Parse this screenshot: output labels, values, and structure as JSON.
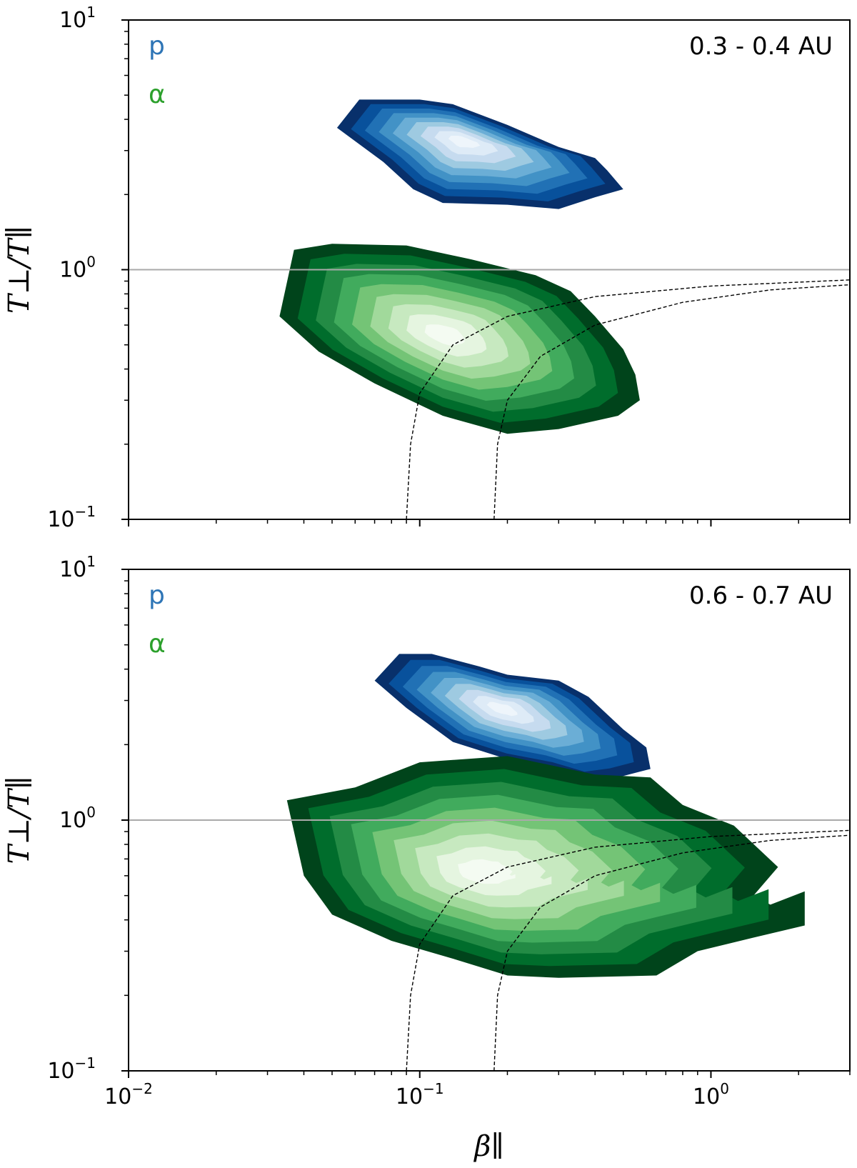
{
  "chart_data": [
    {
      "type": "contour",
      "annotation": "0.3 - 0.4 AU",
      "x_scale": "log",
      "y_scale": "log",
      "xlim": [
        0.01,
        3.0
      ],
      "ylim": [
        0.1,
        10
      ],
      "x_ticks": [
        {
          "mantissa": "10",
          "exp": "−2"
        },
        {
          "mantissa": "10",
          "exp": "−1"
        },
        {
          "mantissa": "10",
          "exp": "0"
        }
      ],
      "y_ticks": [
        {
          "mantissa": "10",
          "exp": "−1"
        },
        {
          "mantissa": "10",
          "exp": "0"
        },
        {
          "mantissa": "10",
          "exp": "1"
        }
      ],
      "xlabel": "",
      "ylabel": "T⊥/T∥",
      "legend": [
        {
          "label": "p",
          "color": "#2e75b6"
        },
        {
          "label": "α",
          "color": "#2ca02c"
        }
      ],
      "reference_line": {
        "y": 1.0,
        "color": "#aaaaaa"
      },
      "threshold_curves": [
        {
          "points": [
            [
              0.09,
              0.1
            ],
            [
              0.093,
              0.2
            ],
            [
              0.1,
              0.32
            ],
            [
              0.13,
              0.5
            ],
            [
              0.2,
              0.65
            ],
            [
              0.4,
              0.78
            ],
            [
              1.0,
              0.86
            ],
            [
              3.0,
              0.91
            ]
          ]
        },
        {
          "points": [
            [
              0.18,
              0.1
            ],
            [
              0.185,
              0.2
            ],
            [
              0.2,
              0.3
            ],
            [
              0.26,
              0.45
            ],
            [
              0.4,
              0.6
            ],
            [
              0.8,
              0.74
            ],
            [
              1.6,
              0.83
            ],
            [
              3.0,
              0.87
            ]
          ]
        }
      ],
      "series": [
        {
          "colormap": "Blues",
          "peak": [
            0.14,
            3.3
          ],
          "outer": [
            [
              0.052,
              3.7
            ],
            [
              0.062,
              4.8
            ],
            [
              0.1,
              4.8
            ],
            [
              0.13,
              4.6
            ],
            [
              0.2,
              3.8
            ],
            [
              0.3,
              3.1
            ],
            [
              0.4,
              2.8
            ],
            [
              0.44,
              2.5
            ],
            [
              0.5,
              2.1
            ],
            [
              0.4,
              1.95
            ],
            [
              0.3,
              1.75
            ],
            [
              0.2,
              1.82
            ],
            [
              0.12,
              1.85
            ],
            [
              0.095,
              2.1
            ],
            [
              0.075,
              2.7
            ]
          ]
        },
        {
          "colormap": "Greens",
          "peak": [
            0.12,
            0.55
          ],
          "outer": [
            [
              0.033,
              0.65
            ],
            [
              0.037,
              1.2
            ],
            [
              0.05,
              1.27
            ],
            [
              0.09,
              1.25
            ],
            [
              0.15,
              1.1
            ],
            [
              0.25,
              0.95
            ],
            [
              0.33,
              0.82
            ],
            [
              0.4,
              0.65
            ],
            [
              0.5,
              0.48
            ],
            [
              0.55,
              0.38
            ],
            [
              0.57,
              0.3
            ],
            [
              0.48,
              0.26
            ],
            [
              0.3,
              0.23
            ],
            [
              0.2,
              0.22
            ],
            [
              0.12,
              0.26
            ],
            [
              0.07,
              0.35
            ],
            [
              0.045,
              0.47
            ]
          ]
        }
      ]
    },
    {
      "type": "contour",
      "annotation": "0.6 - 0.7 AU",
      "x_scale": "log",
      "y_scale": "log",
      "xlim": [
        0.01,
        3.0
      ],
      "ylim": [
        0.1,
        10
      ],
      "x_ticks": [
        {
          "mantissa": "10",
          "exp": "−2"
        },
        {
          "mantissa": "10",
          "exp": "−1"
        },
        {
          "mantissa": "10",
          "exp": "0"
        }
      ],
      "y_ticks": [
        {
          "mantissa": "10",
          "exp": "−1"
        },
        {
          "mantissa": "10",
          "exp": "0"
        },
        {
          "mantissa": "10",
          "exp": "1"
        }
      ],
      "xlabel": "β∥",
      "ylabel": "T⊥/T∥",
      "legend": [
        {
          "label": "p",
          "color": "#2e75b6"
        },
        {
          "label": "α",
          "color": "#2ca02c"
        }
      ],
      "reference_line": {
        "y": 1.0,
        "color": "#aaaaaa"
      },
      "threshold_curves": [
        {
          "points": [
            [
              0.09,
              0.1
            ],
            [
              0.093,
              0.2
            ],
            [
              0.1,
              0.32
            ],
            [
              0.13,
              0.5
            ],
            [
              0.2,
              0.65
            ],
            [
              0.4,
              0.78
            ],
            [
              1.0,
              0.86
            ],
            [
              3.0,
              0.91
            ]
          ]
        },
        {
          "points": [
            [
              0.18,
              0.1
            ],
            [
              0.185,
              0.2
            ],
            [
              0.2,
              0.3
            ],
            [
              0.26,
              0.45
            ],
            [
              0.4,
              0.6
            ],
            [
              0.8,
              0.74
            ],
            [
              1.6,
              0.83
            ],
            [
              3.0,
              0.87
            ]
          ]
        }
      ],
      "series": [
        {
          "colormap": "Blues",
          "peak": [
            0.19,
            2.8
          ],
          "outer": [
            [
              0.07,
              3.6
            ],
            [
              0.085,
              4.6
            ],
            [
              0.11,
              4.6
            ],
            [
              0.16,
              4.1
            ],
            [
              0.2,
              3.8
            ],
            [
              0.3,
              3.6
            ],
            [
              0.38,
              3.1
            ],
            [
              0.5,
              2.3
            ],
            [
              0.6,
              1.95
            ],
            [
              0.62,
              1.6
            ],
            [
              0.5,
              1.5
            ],
            [
              0.4,
              1.45
            ],
            [
              0.3,
              1.6
            ],
            [
              0.2,
              1.75
            ],
            [
              0.13,
              2.05
            ],
            [
              0.09,
              2.8
            ]
          ]
        },
        {
          "colormap": "Greens",
          "peak": [
            0.16,
            0.62
          ],
          "outer": [
            [
              0.035,
              1.2
            ],
            [
              0.06,
              1.35
            ],
            [
              0.1,
              1.7
            ],
            [
              0.2,
              1.8
            ],
            [
              0.4,
              1.52
            ],
            [
              0.62,
              1.48
            ],
            [
              0.8,
              1.15
            ],
            [
              1.2,
              0.95
            ],
            [
              1.7,
              0.65
            ],
            [
              1.4,
              0.5
            ],
            [
              1.6,
              0.46
            ],
            [
              2.1,
              0.52
            ],
            [
              2.1,
              0.38
            ],
            [
              1.4,
              0.34
            ],
            [
              0.9,
              0.3
            ],
            [
              0.65,
              0.24
            ],
            [
              0.3,
              0.235
            ],
            [
              0.2,
              0.24
            ],
            [
              0.13,
              0.28
            ],
            [
              0.08,
              0.33
            ],
            [
              0.05,
              0.42
            ],
            [
              0.04,
              0.6
            ]
          ]
        }
      ]
    }
  ]
}
